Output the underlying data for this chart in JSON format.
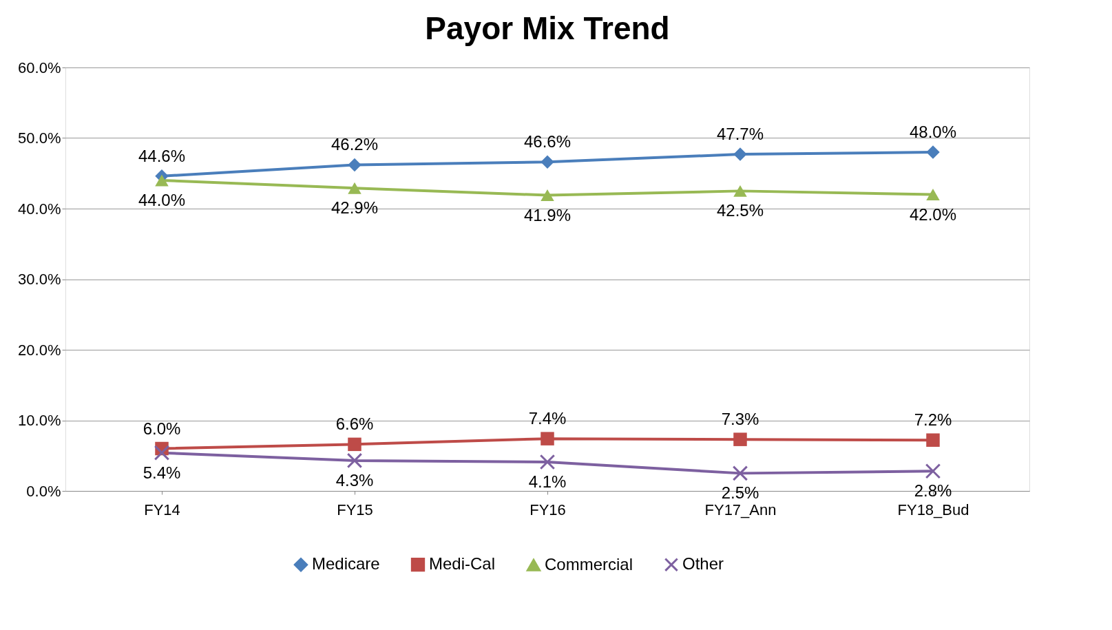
{
  "chart_data": {
    "type": "line",
    "title": "Payor Mix Trend",
    "categories": [
      "FY14",
      "FY15",
      "FY16",
      "FY17_Ann",
      "FY18_Bud"
    ],
    "series": [
      {
        "name": "Medicare",
        "color": "#4a7ebb",
        "marker": "diamond",
        "values": [
          44.6,
          46.2,
          46.6,
          47.7,
          48.0
        ],
        "value_labels": [
          "44.6%",
          "46.2%",
          "46.6%",
          "47.7%",
          "48.0%"
        ]
      },
      {
        "name": "Medi-Cal",
        "color": "#be4b48",
        "marker": "square",
        "values": [
          6.0,
          6.6,
          7.4,
          7.3,
          7.2
        ],
        "value_labels": [
          "6.0%",
          "6.6%",
          "7.4%",
          "7.3%",
          "7.2%"
        ]
      },
      {
        "name": "Commercial",
        "color": "#98b954",
        "marker": "triangle",
        "values": [
          44.0,
          42.9,
          41.9,
          42.5,
          42.0
        ],
        "value_labels": [
          "44.0%",
          "42.9%",
          "41.9%",
          "42.5%",
          "42.0%"
        ]
      },
      {
        "name": "Other",
        "color": "#7d60a0",
        "marker": "cross",
        "values": [
          5.4,
          4.3,
          4.1,
          2.5,
          2.8
        ],
        "value_labels": [
          "5.4%",
          "4.3%",
          "4.1%",
          "2.5%",
          "2.8%"
        ]
      }
    ],
    "ylim": [
      0,
      60
    ],
    "yticks": [
      {
        "value": 0,
        "label": "0.0%"
      },
      {
        "value": 10,
        "label": "10.0%"
      },
      {
        "value": 20,
        "label": "20.0%"
      },
      {
        "value": 30,
        "label": "30.0%"
      },
      {
        "value": 40,
        "label": "40.0%"
      },
      {
        "value": 50,
        "label": "50.0%"
      },
      {
        "value": 60,
        "label": "60.0%"
      }
    ],
    "grid": "y",
    "legend": "bottom",
    "line_style": "solid"
  }
}
